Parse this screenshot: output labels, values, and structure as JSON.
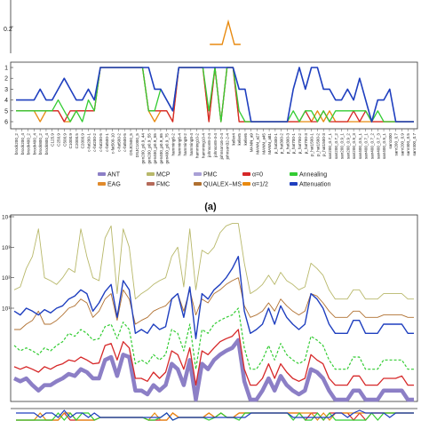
{
  "panel_label": "(a)",
  "colors": {
    "ANT": "#8c7fc6",
    "MCP": "#b8b86a",
    "PMC": "#a9a0d6",
    "alpha0": "#d62728",
    "Annealing": "#33cc33",
    "EAG": "#e08a2c",
    "FMC": "#b56a5a",
    "QUALEX-MS": "#b07030",
    "alpha_half": "#e88a10",
    "Attenuation": "#1f3fbf"
  },
  "legend": [
    {
      "key": "ANT",
      "label": "ANT"
    },
    {
      "key": "MCP",
      "label": "MCP"
    },
    {
      "key": "PMC",
      "label": "PMC"
    },
    {
      "key": "alpha0",
      "label": "α=0"
    },
    {
      "key": "Annealing",
      "label": "Annealing"
    },
    {
      "key": "EAG",
      "label": "EAG"
    },
    {
      "key": "FMC",
      "label": "FMC"
    },
    {
      "key": "QUALEX-MS",
      "label": "QUALEX−MS"
    },
    {
      "key": "alpha_half",
      "label": "α=1/2"
    },
    {
      "key": "Attenuation",
      "label": "Attenuation"
    }
  ],
  "chart_data": [
    {
      "type": "line",
      "name": "top-time-panel",
      "ytick_labels": [
        "0.2"
      ],
      "note": "spike of alpha_half series near x index 33",
      "x": [
        30,
        31,
        32,
        33,
        34,
        35
      ],
      "series": [
        {
          "key": "alpha_half",
          "values": [
            0,
            0,
            0,
            0.32,
            0,
            0
          ]
        }
      ]
    },
    {
      "type": "line",
      "name": "rank-panel",
      "ytick_labels": [
        "1",
        "2",
        "3",
        "4",
        "5",
        "6"
      ],
      "ylim": [
        1,
        6
      ],
      "categories": [
        "brock200_2",
        "brock200_4",
        "brock400_2",
        "brock400_4",
        "brock800_2",
        "brock800_4",
        "C125.9",
        "C250.9",
        "C500.9",
        "C1000.9",
        "C2000.5",
        "C2000.9",
        "c-fat200-1",
        "c-fat200-2",
        "c-fat200-5",
        "c-fat500-1",
        "c-fat500-10",
        "c-fat500-2",
        "c-fat500-5",
        "DSJC500_5",
        "DSJC1000_5",
        "gen200_p0.9_44",
        "gen200_p0.9_55",
        "gen400_p0.9_55",
        "gen400_p0.9_65",
        "gen400_p0.9_75",
        "hamming6-2",
        "hamming6-4",
        "hamming8-2",
        "hamming8-4",
        "hamming10-2",
        "hamming10-4",
        "johnson8-2-4",
        "johnson8-4-4",
        "johnson16-2-4",
        "johnson32-2-4",
        "keller4",
        "keller5",
        "keller6",
        "MANN_a9",
        "MANN_a27",
        "MANN_a45",
        "MANN_a81",
        "p_hat300-1",
        "p_hat300-2",
        "p_hat300-3",
        "p_hat700-1",
        "p_hat700-2",
        "p_hat700-3",
        "p_hat1500-1",
        "p_hat1500-2",
        "p_hat1500-3",
        "san200_0.7_1",
        "san200_0.7_2",
        "san200_0.9_1",
        "san200_0.9_2",
        "san200_0.9_3",
        "san400_0.5_1",
        "san400_0.7_1",
        "san400_0.7_2",
        "san400_0.7_3",
        "san400_0.9_1",
        "san1000",
        "sanr200_0.7",
        "sanr200_0.9",
        "sanr400_0.5",
        "sanr400_0.7"
      ],
      "series": [
        {
          "key": "Attenuation",
          "values": [
            4,
            4,
            4,
            4,
            3,
            4,
            4,
            3,
            2,
            3,
            4,
            4,
            3,
            4,
            1,
            1,
            1,
            1,
            1,
            1,
            1,
            1,
            1,
            3,
            3,
            4,
            5,
            1,
            1,
            1,
            1,
            1,
            1,
            1,
            1,
            1,
            1,
            3,
            3,
            6,
            6,
            6,
            6,
            6,
            6,
            6,
            3,
            1,
            3,
            1,
            1,
            3,
            3,
            4,
            4,
            3,
            4,
            2,
            4,
            6,
            4,
            4,
            3,
            6,
            6,
            6,
            6
          ]
        },
        {
          "key": "Annealing",
          "values": [
            5,
            5,
            5,
            5,
            5,
            5,
            5,
            4,
            5,
            6,
            5,
            6,
            4,
            5,
            1,
            1,
            1,
            1,
            1,
            1,
            1,
            1,
            5,
            5,
            3,
            4,
            5,
            1,
            1,
            1,
            1,
            1,
            5,
            1,
            6,
            1,
            1,
            5,
            6,
            6,
            6,
            6,
            6,
            6,
            6,
            6,
            5,
            6,
            5,
            5,
            6,
            5,
            6,
            5,
            5,
            5,
            5,
            5,
            5,
            6,
            5,
            6,
            6,
            6,
            6,
            6,
            6
          ]
        },
        {
          "key": "alpha0",
          "values": [
            5,
            5,
            5,
            5,
            5,
            5,
            5,
            5,
            6,
            5,
            5,
            5,
            5,
            5,
            1,
            1,
            1,
            1,
            1,
            1,
            1,
            1,
            5,
            5,
            5,
            5,
            6,
            1,
            1,
            1,
            1,
            1,
            6,
            1,
            6,
            1,
            1,
            6,
            6,
            6,
            6,
            6,
            6,
            6,
            6,
            6,
            6,
            6,
            5,
            6,
            6,
            5,
            6,
            6,
            6,
            6,
            5,
            6,
            5,
            6,
            6,
            6,
            6,
            6,
            6,
            6,
            6
          ]
        },
        {
          "key": "alpha_half",
          "values": [
            5,
            5,
            5,
            5,
            6,
            5,
            5,
            5,
            6,
            6,
            5,
            5,
            5,
            5,
            1,
            1,
            1,
            1,
            1,
            1,
            1,
            1,
            5,
            6,
            5,
            5,
            6,
            1,
            1,
            1,
            1,
            1,
            6,
            1,
            6,
            1,
            1,
            6,
            6,
            6,
            6,
            6,
            6,
            6,
            6,
            6,
            6,
            6,
            6,
            6,
            5,
            6,
            5,
            6,
            6,
            6,
            6,
            6,
            6,
            6,
            6,
            6,
            6,
            6,
            6,
            6,
            6
          ]
        }
      ]
    },
    {
      "type": "line",
      "name": "time-log-panel",
      "yscale": "log",
      "ytick_labels": [
        "10⁴",
        "10³",
        "10²",
        "10¹"
      ],
      "ylim": [
        0.01,
        10000
      ],
      "x_count": 67,
      "series": [
        {
          "key": "ANT",
          "values": [
            0.05,
            0.04,
            0.05,
            0.03,
            0.02,
            0.03,
            0.03,
            0.04,
            0.05,
            0.07,
            0.06,
            0.1,
            0.08,
            0.05,
            0.05,
            0.2,
            0.25,
            0.06,
            0.3,
            0.25,
            0.02,
            0.02,
            0.015,
            0.03,
            0.02,
            0.03,
            0.15,
            0.1,
            0.03,
            0.2,
            0.01,
            0.15,
            0.1,
            0.2,
            0.3,
            0.4,
            0.5,
            0.9,
            0.04,
            0.01,
            0.01,
            0.02,
            0.05,
            0.02,
            0.06,
            0.03,
            0.02,
            0.015,
            0.02,
            0.1,
            0.08,
            0.05,
            0.02,
            0.01,
            0.01,
            0.01,
            0.02,
            0.02,
            0.01,
            0.01,
            0.01,
            0.02,
            0.02,
            0.02,
            0.02,
            0.01,
            0.01
          ]
        },
        {
          "key": "alpha0",
          "values": [
            0.12,
            0.1,
            0.12,
            0.1,
            0.08,
            0.12,
            0.1,
            0.13,
            0.15,
            0.2,
            0.18,
            0.25,
            0.2,
            0.15,
            0.16,
            0.6,
            0.7,
            0.2,
            0.8,
            0.5,
            0.05,
            0.05,
            0.04,
            0.08,
            0.05,
            0.08,
            0.4,
            0.3,
            0.1,
            0.5,
            0.03,
            0.4,
            0.3,
            0.5,
            0.8,
            1,
            1.2,
            2,
            0.1,
            0.03,
            0.03,
            0.05,
            0.15,
            0.05,
            0.15,
            0.08,
            0.05,
            0.04,
            0.05,
            0.3,
            0.2,
            0.15,
            0.05,
            0.03,
            0.03,
            0.03,
            0.06,
            0.06,
            0.03,
            0.03,
            0.03,
            0.05,
            0.05,
            0.05,
            0.06,
            0.03,
            0.03
          ]
        },
        {
          "key": "Annealing",
          "values": [
            0.6,
            0.4,
            0.5,
            0.4,
            0.3,
            0.5,
            0.4,
            0.6,
            0.8,
            1.5,
            1.2,
            2,
            1.5,
            0.9,
            1,
            2.5,
            3,
            1,
            3.5,
            2,
            0.15,
            0.2,
            0.15,
            0.3,
            0.2,
            0.3,
            2,
            1.5,
            0.4,
            3,
            0.1,
            2,
            1.5,
            3,
            4,
            5,
            6,
            10,
            0.5,
            0.1,
            0.1,
            0.2,
            0.6,
            0.2,
            0.7,
            0.3,
            0.2,
            0.15,
            0.2,
            1.2,
            0.9,
            0.6,
            0.2,
            0.1,
            0.1,
            0.1,
            0.25,
            0.25,
            0.1,
            0.1,
            0.1,
            0.2,
            0.2,
            0.2,
            0.2,
            0.1,
            0.1
          ]
        },
        {
          "key": "Attenuation",
          "values": [
            8,
            6,
            10,
            8,
            6,
            9,
            7,
            10,
            12,
            20,
            25,
            40,
            30,
            8,
            15,
            35,
            60,
            5,
            80,
            40,
            1.5,
            2,
            1.5,
            3,
            2,
            2.5,
            20,
            30,
            5,
            50,
            1,
            30,
            20,
            40,
            60,
            100,
            200,
            500,
            8,
            1.5,
            2,
            3,
            10,
            3,
            12,
            5,
            3,
            2,
            3,
            30,
            20,
            10,
            3,
            1.5,
            1.5,
            1.5,
            4,
            4,
            1.5,
            1.5,
            1.5,
            3,
            3,
            3,
            3,
            1.5,
            1.5
          ]
        },
        {
          "key": "MCP",
          "values": [
            40,
            50,
            200,
            500,
            4000,
            100,
            80,
            60,
            100,
            200,
            150,
            4000,
            500,
            100,
            80,
            2000,
            5000,
            30,
            4000,
            1000,
            20,
            30,
            40,
            60,
            80,
            100,
            500,
            1000,
            50,
            4000,
            40,
            800,
            600,
            1000,
            3000,
            5000,
            6000,
            6000,
            300,
            30,
            40,
            60,
            120,
            60,
            150,
            80,
            60,
            40,
            50,
            300,
            200,
            120,
            40,
            20,
            20,
            20,
            40,
            40,
            20,
            20,
            20,
            30,
            30,
            30,
            30,
            20,
            20
          ]
        },
        {
          "key": "QUALEX-MS",
          "values": [
            2,
            2,
            3,
            4,
            8,
            3,
            3,
            4,
            6,
            10,
            12,
            20,
            15,
            5,
            8,
            20,
            30,
            4,
            40,
            20,
            3,
            4,
            5,
            8,
            10,
            12,
            20,
            30,
            8,
            40,
            6,
            20,
            15,
            30,
            40,
            60,
            80,
            100,
            12,
            5,
            6,
            8,
            15,
            8,
            20,
            12,
            8,
            6,
            8,
            30,
            25,
            15,
            8,
            5,
            5,
            5,
            8,
            8,
            5,
            5,
            5,
            6,
            6,
            6,
            6,
            5,
            5
          ]
        }
      ]
    }
  ]
}
